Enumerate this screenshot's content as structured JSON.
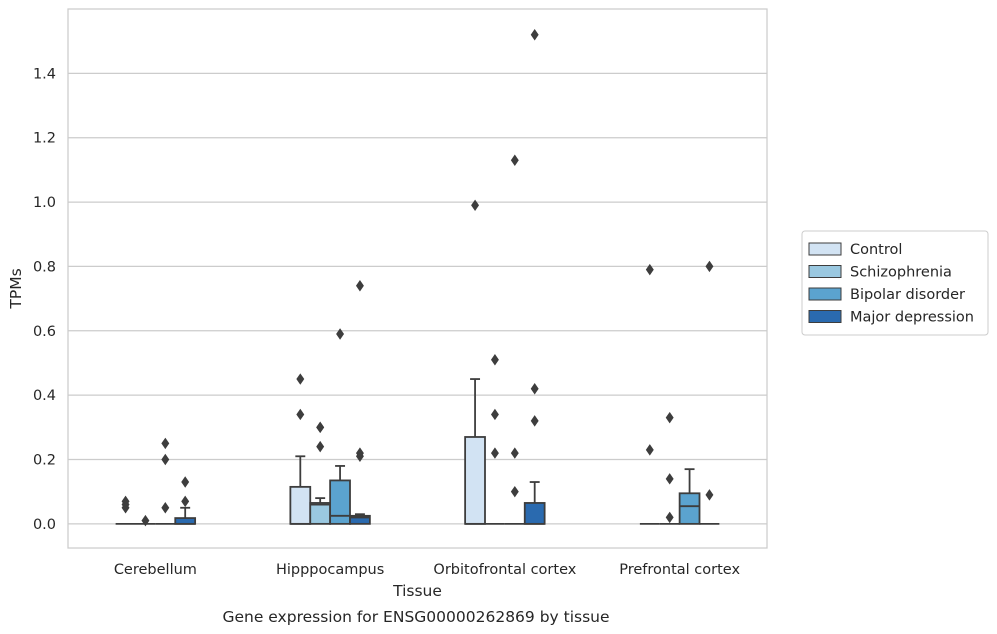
{
  "chart_data": {
    "type": "box",
    "caption": "Gene expression for ENSG00000262869 by tissue",
    "xlabel": "Tissue",
    "ylabel": "TPMs",
    "ylim": [
      -0.075,
      1.6
    ],
    "yticks": [
      0.0,
      0.2,
      0.4,
      0.6,
      0.8,
      1.0,
      1.2,
      1.4
    ],
    "ytick_labels": [
      "0.0",
      "0.2",
      "0.4",
      "0.6",
      "0.8",
      "1.0",
      "1.2",
      "1.4"
    ],
    "grid": "horizontal",
    "legend_position": "right",
    "categories": [
      "Cerebellum",
      "Hipppocampus",
      "Orbitofrontal cortex",
      "Prefrontal cortex"
    ],
    "series": [
      {
        "name": "Control",
        "color": "#d2e3f3",
        "boxes": [
          {
            "q1": 0,
            "median": 0,
            "q3": 0,
            "whisker_low": 0,
            "whisker_high": 0,
            "outliers": [
              0.05,
              0.06,
              0.07
            ]
          },
          {
            "q1": 0,
            "median": 0,
            "q3": 0.115,
            "whisker_low": 0,
            "whisker_high": 0.21,
            "outliers": [
              0.34,
              0.45
            ]
          },
          {
            "q1": 0,
            "median": 0,
            "q3": 0.27,
            "whisker_low": 0,
            "whisker_high": 0.45,
            "outliers": [
              0.99
            ]
          },
          {
            "q1": 0,
            "median": 0,
            "q3": 0,
            "whisker_low": 0,
            "whisker_high": 0,
            "outliers": [
              0.23,
              0.79
            ]
          }
        ]
      },
      {
        "name": "Schizophrenia",
        "color": "#9ac8e0",
        "boxes": [
          {
            "q1": 0,
            "median": 0,
            "q3": 0,
            "whisker_low": 0,
            "whisker_high": 0,
            "outliers": [
              0.01
            ]
          },
          {
            "q1": 0,
            "median": 0.06,
            "q3": 0.065,
            "whisker_low": 0,
            "whisker_high": 0.08,
            "outliers": [
              0.24,
              0.3,
              0.3
            ]
          },
          {
            "q1": 0,
            "median": 0,
            "q3": 0,
            "whisker_low": 0,
            "whisker_high": 0,
            "outliers": [
              0.22,
              0.34,
              0.51
            ]
          },
          {
            "q1": 0,
            "median": 0,
            "q3": 0,
            "whisker_low": 0,
            "whisker_high": 0,
            "outliers": [
              0.02,
              0.14,
              0.33
            ]
          }
        ]
      },
      {
        "name": "Bipolar disorder",
        "color": "#5ba3cf",
        "boxes": [
          {
            "q1": 0,
            "median": 0,
            "q3": 0,
            "whisker_low": 0,
            "whisker_high": 0,
            "outliers": [
              0.05,
              0.2,
              0.25
            ]
          },
          {
            "q1": 0,
            "median": 0.025,
            "q3": 0.135,
            "whisker_low": 0,
            "whisker_high": 0.18,
            "outliers": [
              0.59
            ]
          },
          {
            "q1": 0,
            "median": 0,
            "q3": 0,
            "whisker_low": 0,
            "whisker_high": 0,
            "outliers": [
              0.1,
              0.22,
              1.13
            ]
          },
          {
            "q1": 0,
            "median": 0.055,
            "q3": 0.095,
            "whisker_low": 0,
            "whisker_high": 0.17,
            "outliers": []
          }
        ]
      },
      {
        "name": "Major depression",
        "color": "#2a6aaf",
        "boxes": [
          {
            "q1": 0,
            "median": 0,
            "q3": 0.018,
            "whisker_low": 0,
            "whisker_high": 0.05,
            "outliers": [
              0.07,
              0.13
            ]
          },
          {
            "q1": 0,
            "median": 0.02,
            "q3": 0.025,
            "whisker_low": 0,
            "whisker_high": 0.03,
            "outliers": [
              0.21,
              0.22,
              0.74
            ]
          },
          {
            "q1": 0,
            "median": 0,
            "q3": 0.065,
            "whisker_low": 0,
            "whisker_high": 0.13,
            "outliers": [
              0.32,
              0.42,
              1.52
            ]
          },
          {
            "q1": 0,
            "median": 0,
            "q3": 0,
            "whisker_low": 0,
            "whisker_high": 0,
            "outliers": [
              0.09,
              0.8
            ]
          }
        ]
      }
    ]
  }
}
